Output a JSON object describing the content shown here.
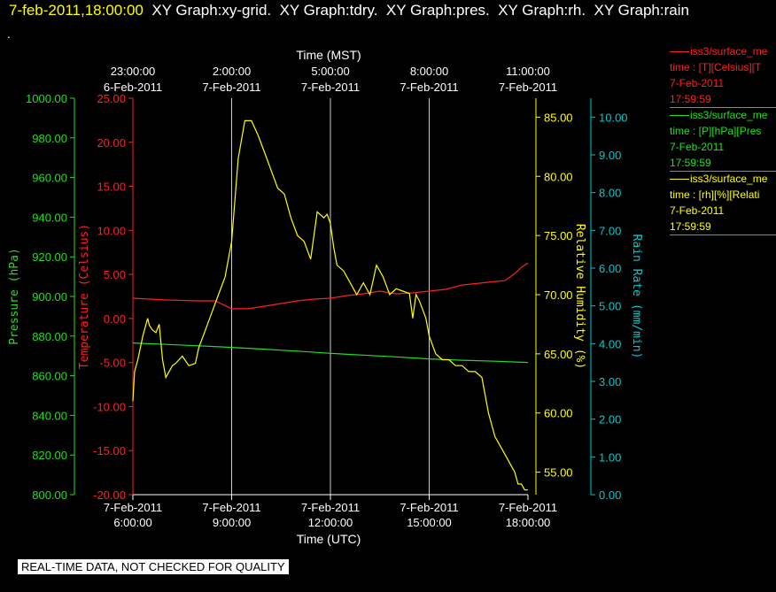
{
  "header": {
    "timestamp": "7-feb-2011,18:00:00",
    "graphs": "XY Graph:xy-grid.  XY Graph:tdry.  XY Graph:pres.  XY Graph:rh.  XY Graph:rain",
    "dot": "."
  },
  "banner": "REAL-TIME DATA, NOT CHECKED FOR QUALITY",
  "legend": [
    {
      "name": "iss3/surface_me",
      "field": "time : [T][Celsius][T",
      "date": "7-Feb-2011",
      "time": "17:59:59",
      "color": "#ff2020"
    },
    {
      "name": "iss3/surface_me",
      "field": "time : [P][hPa][Pres",
      "date": "7-Feb-2011",
      "time": "17:59:59",
      "color": "#20e020"
    },
    {
      "name": "iss3/surface_me",
      "field": "time : [rh][%][Relati",
      "date": "7-Feb-2011",
      "time": "17:59:59",
      "color": "#ffff00"
    }
  ],
  "colors": {
    "temperature": "#ff2020",
    "pressure": "#20e020",
    "rh": "#ffff00",
    "rain": "#00cccc",
    "grid": "#cccccc"
  },
  "chart_data": {
    "type": "line",
    "xlabel_bottom": "Time (UTC)",
    "xlabel_top": "Time (MST)",
    "x_range": [
      6,
      18
    ],
    "x_ticks_bottom": [
      {
        "x": 6,
        "l1": "7-Feb-2011",
        "l2": "6:00:00"
      },
      {
        "x": 9,
        "l1": "7-Feb-2011",
        "l2": "9:00:00"
      },
      {
        "x": 12,
        "l1": "7-Feb-2011",
        "l2": "12:00:00"
      },
      {
        "x": 15,
        "l1": "7-Feb-2011",
        "l2": "15:00:00"
      },
      {
        "x": 18,
        "l1": "7-Feb-2011",
        "l2": "18:00:00"
      }
    ],
    "x_ticks_top": [
      {
        "x": 6,
        "l1": "23:00:00",
        "l2": "6-Feb-2011"
      },
      {
        "x": 9,
        "l1": "2:00:00",
        "l2": "7-Feb-2011"
      },
      {
        "x": 12,
        "l1": "5:00:00",
        "l2": "7-Feb-2011"
      },
      {
        "x": 15,
        "l1": "8:00:00",
        "l2": "7-Feb-2011"
      },
      {
        "x": 18,
        "l1": "11:00:00",
        "l2": "7-Feb-2011"
      }
    ],
    "axes": {
      "pressure": {
        "label": "Pressure (hPa)",
        "range": [
          800,
          1000
        ],
        "ticks": [
          "800.00",
          "820.00",
          "840.00",
          "860.00",
          "880.00",
          "900.00",
          "920.00",
          "940.00",
          "960.00",
          "980.00",
          "1000.00"
        ]
      },
      "temperature": {
        "label": "Temperature (Celsius)",
        "range": [
          -20,
          25
        ],
        "ticks": [
          "-20.00",
          "-15.00",
          "-10.00",
          "-5.00",
          "0.00",
          "5.00",
          "10.00",
          "15.00",
          "20.00",
          "25.00"
        ]
      },
      "rh": {
        "label": "Relative Humidity (%)",
        "range": [
          53.1,
          86.6
        ],
        "ticks": [
          "55.00",
          "60.00",
          "65.00",
          "70.00",
          "75.00",
          "80.00",
          "85.00"
        ]
      },
      "rain": {
        "label": "Rain Rate (mm/min)",
        "range": [
          0,
          10.5
        ],
        "ticks": [
          "0.00",
          "1.00",
          "2.00",
          "3.00",
          "4.00",
          "5.00",
          "6.00",
          "7.00",
          "8.00",
          "9.00",
          "10.00"
        ]
      }
    },
    "series": [
      {
        "axis": "temperature",
        "x": [
          6.0,
          7.0,
          8.0,
          8.5,
          9.0,
          9.5,
          10.0,
          10.5,
          11.0,
          11.5,
          12.0,
          12.5,
          13.0,
          13.5,
          14.0,
          14.5,
          15.0,
          15.5,
          16.0,
          16.5,
          17.0,
          17.3,
          17.6,
          17.8,
          18.0
        ],
        "y": [
          2.3,
          2.1,
          2.0,
          2.0,
          1.1,
          1.1,
          1.4,
          1.7,
          2.0,
          2.2,
          2.3,
          2.6,
          2.8,
          3.1,
          2.8,
          2.9,
          3.1,
          3.3,
          3.8,
          4.0,
          4.2,
          4.3,
          5.1,
          5.8,
          6.3
        ]
      },
      {
        "axis": "pressure",
        "x": [
          6.0,
          7.0,
          8.0,
          9.0,
          10.0,
          11.0,
          12.0,
          13.0,
          14.0,
          15.0,
          16.0,
          17.0,
          18.0
        ],
        "y": [
          876.5,
          875.8,
          875.1,
          874.3,
          873.4,
          872.4,
          871.3,
          870.4,
          869.5,
          868.5,
          867.8,
          867.3,
          866.7
        ]
      },
      {
        "axis": "rh",
        "x": [
          6.0,
          6.05,
          6.15,
          6.3,
          6.45,
          6.5,
          6.6,
          6.7,
          6.8,
          6.9,
          7.0,
          7.1,
          7.2,
          7.3,
          7.5,
          7.7,
          7.9,
          8.0,
          8.2,
          8.4,
          8.6,
          8.8,
          9.0,
          9.2,
          9.4,
          9.6,
          9.8,
          10.0,
          10.2,
          10.4,
          10.6,
          10.8,
          11.0,
          11.2,
          11.4,
          11.6,
          11.8,
          11.9,
          12.0,
          12.1,
          12.2,
          12.4,
          12.6,
          12.8,
          13.0,
          13.2,
          13.4,
          13.6,
          13.8,
          14.0,
          14.2,
          14.4,
          14.5,
          14.6,
          14.7,
          14.9,
          15.0,
          15.2,
          15.4,
          15.6,
          15.8,
          16.0,
          16.2,
          16.4,
          16.6,
          16.8,
          17.0,
          17.2,
          17.4,
          17.6,
          17.7,
          17.8,
          17.9,
          18.0
        ],
        "y": [
          61.0,
          63.5,
          64.5,
          66.5,
          68.0,
          67.4,
          67.0,
          66.8,
          67.5,
          64.5,
          63.0,
          63.5,
          64.0,
          64.2,
          64.8,
          64.0,
          64.2,
          65.5,
          67.0,
          68.5,
          70.0,
          71.5,
          74.5,
          81.5,
          84.7,
          84.7,
          83.5,
          82.0,
          80.5,
          79.0,
          78.5,
          76.5,
          75.0,
          74.5,
          73.0,
          77.0,
          76.5,
          76.8,
          76.0,
          74.0,
          72.5,
          72.0,
          71.0,
          70.0,
          71.0,
          70.0,
          72.5,
          71.5,
          70.0,
          70.5,
          70.3,
          70.1,
          68.0,
          70.0,
          69.5,
          68.0,
          66.5,
          65.0,
          64.5,
          64.5,
          64.0,
          64.0,
          63.5,
          63.5,
          63.0,
          60.0,
          58.0,
          57.0,
          56.0,
          55.0,
          54.0,
          54.0,
          53.5,
          53.5
        ]
      }
    ]
  }
}
